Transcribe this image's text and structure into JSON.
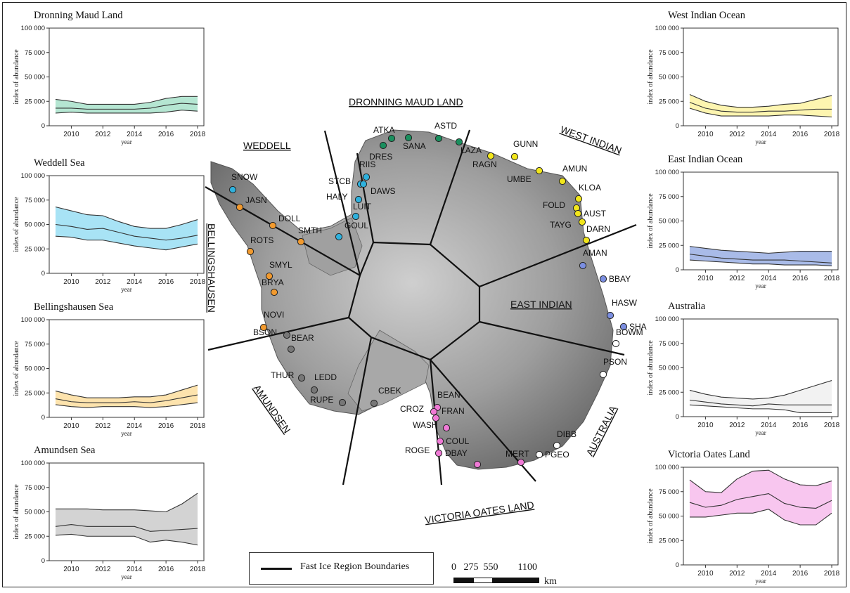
{
  "chart_data": [
    {
      "type": "area",
      "title": "Dronning Maud Land",
      "xlabel": "year",
      "ylabel": "index of abundance",
      "ylim": [
        0,
        100000
      ],
      "yticks": [
        "0",
        "25 000",
        "50 000",
        "75 000",
        "100 000"
      ],
      "xticks": [
        "2010",
        "2012",
        "2014",
        "2016",
        "2018"
      ],
      "fill_color": "#b5e6d2",
      "x": [
        2009,
        2010,
        2011,
        2012,
        2013,
        2014,
        2015,
        2016,
        2017,
        2018
      ],
      "upper": [
        27000,
        25000,
        22000,
        22000,
        22000,
        22000,
        24000,
        28000,
        30000,
        30000
      ],
      "mean": [
        18000,
        18000,
        17000,
        17000,
        17000,
        17000,
        18000,
        21000,
        23000,
        22000
      ],
      "lower": [
        13000,
        14000,
        13000,
        13000,
        13000,
        13000,
        13000,
        14000,
        16000,
        15000
      ]
    },
    {
      "type": "area",
      "title": "Weddell Sea",
      "xlabel": "year",
      "ylabel": "index of abundance",
      "ylim": [
        0,
        100000
      ],
      "yticks": [
        "0",
        "25 000",
        "50 000",
        "75 000",
        "100 000"
      ],
      "xticks": [
        "2010",
        "2012",
        "2014",
        "2016",
        "2018"
      ],
      "fill_color": "#a8e3f5",
      "x": [
        2009,
        2010,
        2011,
        2012,
        2013,
        2014,
        2015,
        2016,
        2017,
        2018
      ],
      "upper": [
        68000,
        64000,
        60000,
        59000,
        53000,
        48000,
        46000,
        46000,
        50000,
        55000
      ],
      "mean": [
        50000,
        48000,
        45000,
        46000,
        42000,
        38000,
        36000,
        34000,
        36000,
        39000
      ],
      "lower": [
        38000,
        37000,
        34000,
        34000,
        31000,
        28000,
        26000,
        24000,
        27000,
        30000
      ]
    },
    {
      "type": "area",
      "title": "Bellingshausen Sea",
      "xlabel": "year",
      "ylabel": "index of abundance",
      "ylim": [
        0,
        100000
      ],
      "yticks": [
        "0",
        "25 000",
        "50 000",
        "75 000",
        "100 000"
      ],
      "xticks": [
        "2010",
        "2012",
        "2014",
        "2016",
        "2018"
      ],
      "fill_color": "#fde3ad",
      "x": [
        2009,
        2010,
        2011,
        2012,
        2013,
        2014,
        2015,
        2016,
        2017,
        2018
      ],
      "upper": [
        27000,
        23000,
        20000,
        20000,
        20000,
        21000,
        21000,
        23000,
        28000,
        33000
      ],
      "mean": [
        19000,
        16000,
        15000,
        15000,
        15000,
        16000,
        15000,
        17000,
        20000,
        23000
      ],
      "lower": [
        13000,
        11000,
        10000,
        11000,
        11000,
        11000,
        10000,
        11000,
        13000,
        15000
      ]
    },
    {
      "type": "area",
      "title": "Amundsen Sea",
      "xlabel": "year",
      "ylabel": "index of abundance",
      "ylim": [
        0,
        100000
      ],
      "yticks": [
        "0",
        "25 000",
        "50 000",
        "75 000",
        "100 000"
      ],
      "xticks": [
        "2010",
        "2012",
        "2014",
        "2016",
        "2018"
      ],
      "fill_color": "#d3d3d3",
      "x": [
        2009,
        2010,
        2011,
        2012,
        2013,
        2014,
        2015,
        2016,
        2017,
        2018
      ],
      "upper": [
        53000,
        53000,
        53000,
        52000,
        52000,
        52000,
        51000,
        50000,
        58000,
        69000
      ],
      "mean": [
        35000,
        37000,
        35000,
        35000,
        35000,
        35000,
        30000,
        31000,
        32000,
        33000
      ],
      "lower": [
        26000,
        27000,
        25000,
        25000,
        25000,
        25000,
        19000,
        21000,
        19000,
        16000
      ]
    },
    {
      "type": "area",
      "title": "West Indian Ocean",
      "xlabel": "year",
      "ylabel": "index of abundance",
      "ylim": [
        0,
        100000
      ],
      "yticks": [
        "0",
        "25 000",
        "50 000",
        "75 000",
        "100 000"
      ],
      "xticks": [
        "2010",
        "2012",
        "2014",
        "2016",
        "2018"
      ],
      "fill_color": "#fdf5b0",
      "x": [
        2009,
        2010,
        2011,
        2012,
        2013,
        2014,
        2015,
        2016,
        2017,
        2018
      ],
      "upper": [
        32000,
        25000,
        21000,
        19000,
        19000,
        20000,
        22000,
        23000,
        27000,
        31000
      ],
      "mean": [
        24000,
        18000,
        15000,
        14000,
        14000,
        15000,
        15000,
        16000,
        17000,
        17000
      ],
      "lower": [
        18000,
        13000,
        10000,
        10000,
        10000,
        10000,
        11000,
        11000,
        10000,
        9000
      ]
    },
    {
      "type": "area",
      "title": "East Indian Ocean",
      "xlabel": "year",
      "ylabel": "index of abundance",
      "ylim": [
        0,
        100000
      ],
      "yticks": [
        "0",
        "25 000",
        "50 000",
        "75 000",
        "100 000"
      ],
      "xticks": [
        "2010",
        "2012",
        "2014",
        "2016",
        "2018"
      ],
      "fill_color": "#a9bbe8",
      "x": [
        2009,
        2010,
        2011,
        2012,
        2013,
        2014,
        2015,
        2016,
        2017,
        2018
      ],
      "upper": [
        24000,
        22000,
        20000,
        19000,
        18000,
        17000,
        18000,
        19000,
        19000,
        19000
      ],
      "mean": [
        16000,
        14000,
        12000,
        11000,
        10000,
        10000,
        10000,
        9000,
        8000,
        7000
      ],
      "lower": [
        10000,
        9000,
        8000,
        7000,
        6000,
        6000,
        5000,
        5000,
        5000,
        4000
      ]
    },
    {
      "type": "area",
      "title": "Australia",
      "xlabel": "year",
      "ylabel": "index of abundance",
      "ylim": [
        0,
        100000
      ],
      "yticks": [
        "0",
        "25 000",
        "50 000",
        "75 000",
        "100 000"
      ],
      "xticks": [
        "2010",
        "2012",
        "2014",
        "2016",
        "2018"
      ],
      "fill_color": "#f2f2f2",
      "x": [
        2009,
        2010,
        2011,
        2012,
        2013,
        2014,
        2015,
        2016,
        2017,
        2018
      ],
      "upper": [
        27000,
        23000,
        20000,
        19000,
        18000,
        19000,
        22000,
        27000,
        32000,
        37000
      ],
      "mean": [
        17000,
        15000,
        13000,
        12000,
        11000,
        13000,
        12000,
        12000,
        12000,
        12000
      ],
      "lower": [
        12000,
        11000,
        10000,
        9000,
        8000,
        8000,
        7000,
        4000,
        4000,
        4000
      ]
    },
    {
      "type": "area",
      "title": "Victoria Oates Land",
      "xlabel": "year",
      "ylabel": "index of abundance",
      "ylim": [
        0,
        100000
      ],
      "yticks": [
        "0",
        "25 000",
        "50 000",
        "75 000",
        "100 000"
      ],
      "xticks": [
        "2010",
        "2012",
        "2014",
        "2016",
        "2018"
      ],
      "fill_color": "#f8c6ef",
      "x": [
        2009,
        2010,
        2011,
        2012,
        2013,
        2014,
        2015,
        2016,
        2017,
        2018
      ],
      "upper": [
        87000,
        75000,
        74000,
        88000,
        96000,
        97000,
        88000,
        82000,
        81000,
        86000
      ],
      "mean": [
        64000,
        59000,
        61000,
        67000,
        70000,
        73000,
        63000,
        59000,
        58000,
        66000
      ],
      "lower": [
        49000,
        49000,
        51000,
        53000,
        53000,
        57000,
        46000,
        41000,
        41000,
        53000
      ]
    }
  ],
  "map": {
    "region_labels": [
      "DRONNING MAUD LAND",
      "WEST INDIAN",
      "WEDDELL",
      "BELLINGSHAUSEN",
      "EAST INDIAN",
      "AMUNDSEN",
      "AUSTRALIA",
      "VICTORIA OATES LAND"
    ],
    "sites": [
      {
        "name": "ATKA",
        "color": "#1a8f5e"
      },
      {
        "name": "SANA",
        "color": "#1a8f5e"
      },
      {
        "name": "ASTD",
        "color": "#1a8f5e"
      },
      {
        "name": "DRES",
        "color": "#1a8f5e"
      },
      {
        "name": "LAZA",
        "color": "#1a8f5e"
      },
      {
        "name": "RAGN",
        "color": "#f2e61c"
      },
      {
        "name": "GUNN",
        "color": "#f2e61c"
      },
      {
        "name": "UMBE",
        "color": "#f2e61c"
      },
      {
        "name": "AMUN",
        "color": "#f2e61c"
      },
      {
        "name": "KLOA",
        "color": "#f2e61c"
      },
      {
        "name": "FOLD",
        "color": "#f2e61c"
      },
      {
        "name": "AUST",
        "color": "#f2e61c"
      },
      {
        "name": "TAYG",
        "color": "#f2e61c"
      },
      {
        "name": "DARN",
        "color": "#f2e61c"
      },
      {
        "name": "AMAN",
        "color": "#7b8ee0"
      },
      {
        "name": "BBAY",
        "color": "#7b8ee0"
      },
      {
        "name": "HASW",
        "color": "#7b8ee0"
      },
      {
        "name": "SHAC",
        "color": "#7b8ee0"
      },
      {
        "name": "BOWM",
        "color": "#ffffff"
      },
      {
        "name": "PSON",
        "color": "#ffffff"
      },
      {
        "name": "DIBB",
        "color": "#ffffff"
      },
      {
        "name": "PGEO",
        "color": "#ffffff"
      },
      {
        "name": "MERT",
        "color": "#f07ad6"
      },
      {
        "name": "DBAY",
        "color": "#f07ad6"
      },
      {
        "name": "ROGE",
        "color": "#f07ad6"
      },
      {
        "name": "COUL",
        "color": "#f07ad6"
      },
      {
        "name": "WASH",
        "color": "#f07ad6"
      },
      {
        "name": "FRAN",
        "color": "#f07ad6"
      },
      {
        "name": "BEAN",
        "color": "#f07ad6"
      },
      {
        "name": "CROZ",
        "color": "#f07ad6"
      },
      {
        "name": "CBEK",
        "color": "#777777"
      },
      {
        "name": "RUPE",
        "color": "#777777"
      },
      {
        "name": "LEDD",
        "color": "#777777"
      },
      {
        "name": "THUR",
        "color": "#777777"
      },
      {
        "name": "BEAR",
        "color": "#777777"
      },
      {
        "name": "BSON",
        "color": "#777777"
      },
      {
        "name": "NOVI",
        "color": "#f29a2e"
      },
      {
        "name": "BRYA",
        "color": "#f29a2e"
      },
      {
        "name": "SMYL",
        "color": "#f29a2e"
      },
      {
        "name": "ROTS",
        "color": "#f29a2e"
      },
      {
        "name": "DOLL",
        "color": "#f29a2e"
      },
      {
        "name": "SMTH",
        "color": "#f29a2e"
      },
      {
        "name": "JASN",
        "color": "#f29a2e"
      },
      {
        "name": "SNOW",
        "color": "#2fb1dd"
      },
      {
        "name": "GOUL",
        "color": "#2fb1dd"
      },
      {
        "name": "LUIT",
        "color": "#2fb1dd"
      },
      {
        "name": "HALY",
        "color": "#2fb1dd"
      },
      {
        "name": "STCB",
        "color": "#2fb1dd"
      },
      {
        "name": "DAWS",
        "color": "#2fb1dd"
      },
      {
        "name": "RIIS",
        "color": "#2fb1dd"
      }
    ]
  },
  "legend": {
    "label": "Fast Ice Region Boundaries"
  },
  "scale": {
    "ticks": [
      "0",
      "275",
      "550",
      "1100"
    ],
    "unit": "km"
  }
}
